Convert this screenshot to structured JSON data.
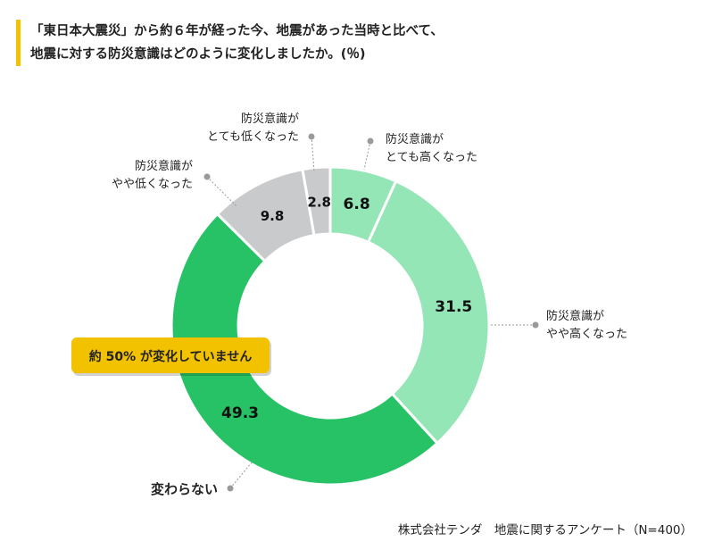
{
  "header": {
    "title_line1": "「東日本大震災」から約６年が経った今、地震があった当時と比べて、",
    "title_line2": "地震に対する防災意識はどのように変化しましたか。(％)"
  },
  "callout": "約 50% が変化していません",
  "footer": "株式会社テンダ　地震に関するアンケート（N=400）",
  "colors": {
    "accent": "#f2c200",
    "very_high": "#95e6b6",
    "somewhat_high": "#95e6b6",
    "unchanged": "#26c265",
    "somewhat_low": "#c9cacc",
    "very_low": "#c9cacc"
  },
  "chart_data": {
    "type": "pie",
    "donut": true,
    "unit": "%",
    "categories": [
      "防災意識がとても高くなった",
      "防災意識がやや高くなった",
      "変わらない",
      "防災意識がやや低くなった",
      "防災意識がとても低くなった"
    ],
    "values": [
      6.8,
      31.5,
      49.3,
      9.8,
      2.8
    ],
    "value_labels": [
      "6.8",
      "31.5",
      "49.3",
      "9.8",
      "2.8"
    ],
    "legend": [
      [
        "防災意識が",
        "とても高くなった"
      ],
      [
        "防災意識が",
        "やや高くなった"
      ],
      [
        "変わらない"
      ],
      [
        "防災意識が",
        "やや低くなった"
      ],
      [
        "防災意識が",
        "とても低くなった"
      ]
    ],
    "colors": [
      "#95e6b6",
      "#95e6b6",
      "#26c265",
      "#c9cacc",
      "#c9cacc"
    ]
  }
}
